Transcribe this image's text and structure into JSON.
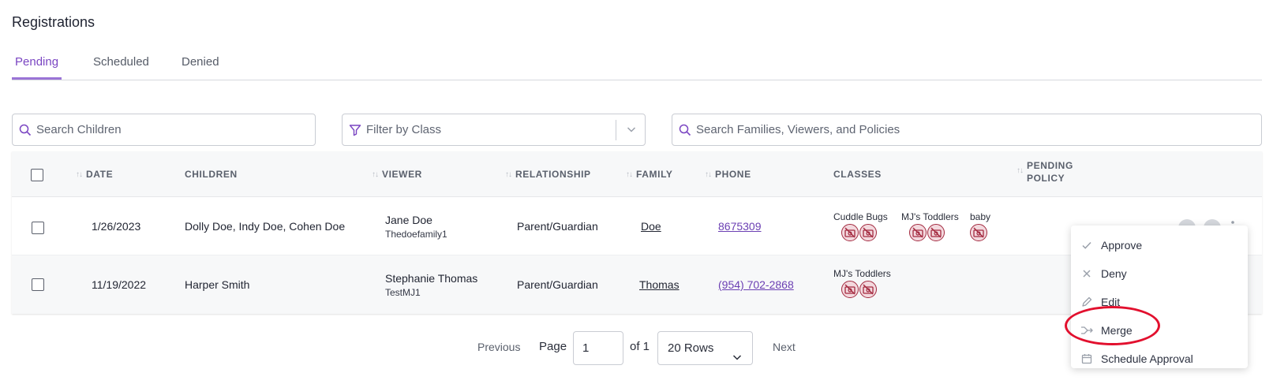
{
  "page": {
    "title": "Registrations"
  },
  "tabs": [
    {
      "label": "Pending",
      "active": true
    },
    {
      "label": "Scheduled",
      "active": false
    },
    {
      "label": "Denied",
      "active": false
    }
  ],
  "filters": {
    "search_children": {
      "placeholder": "Search Children",
      "value": ""
    },
    "filter_class": {
      "placeholder": "Filter by Class",
      "value": ""
    },
    "search_families": {
      "placeholder": "Search Families, Viewers, and Policies",
      "value": ""
    }
  },
  "table": {
    "headers": {
      "date": "DATE",
      "children": "CHILDREN",
      "viewer": "VIEWER",
      "relationship": "RELATIONSHIP",
      "family": "FAMILY",
      "phone": "PHONE",
      "classes": "CLASSES",
      "pending_policy_1": "PENDING",
      "pending_policy_2": "POLICY"
    },
    "rows": [
      {
        "date": "1/26/2023",
        "children": "Dolly Doe, Indy Doe, Cohen Doe",
        "viewer_name": "Jane Doe",
        "viewer_username": "Thedoefamily1",
        "relationship": "Parent/Guardian",
        "family": "Doe",
        "phone": "8675309",
        "classes": [
          {
            "name": "Cuddle Bugs",
            "photo_count": 2
          },
          {
            "name": "MJ's Toddlers",
            "photo_count": 2
          },
          {
            "name": "baby",
            "photo_count": 1
          }
        ]
      },
      {
        "date": "11/19/2022",
        "children": "Harper Smith",
        "viewer_name": "Stephanie Thomas",
        "viewer_username": "TestMJ1",
        "relationship": "Parent/Guardian",
        "family": "Thomas",
        "phone": "(954) 702-2868",
        "classes": [
          {
            "name": "MJ's Toddlers",
            "photo_count": 2
          }
        ]
      }
    ]
  },
  "pagination": {
    "previous": "Previous",
    "page_label": "Page",
    "page_value": "1",
    "of_label": "of 1",
    "rows_option": "20 Rows",
    "next": "Next"
  },
  "context_menu": {
    "items": [
      {
        "label": "Approve",
        "icon": "check-icon"
      },
      {
        "label": "Deny",
        "icon": "x-icon"
      },
      {
        "label": "Edit",
        "icon": "pencil-icon"
      },
      {
        "label": "Merge",
        "icon": "merge-icon"
      },
      {
        "label": "Schedule Approval",
        "icon": "calendar-icon"
      }
    ]
  },
  "colors": {
    "accent": "#7a45c2",
    "link": "#6b3fb3",
    "annotation": "#e2102e",
    "no_photo": "#a3293f"
  }
}
